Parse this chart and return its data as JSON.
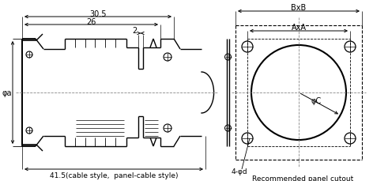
{
  "bg_color": "#ffffff",
  "line_color": "#000000",
  "figsize": [
    4.72,
    2.3
  ],
  "dpi": 100,
  "dim_30_5": "30.5",
  "dim_26": "26",
  "dim_2": "2",
  "dim_41_5": "41.5(cable style,  panel-cable style)",
  "dim_phiA": "φa",
  "dim_BxB": "BxB",
  "dim_AxA": "AxA",
  "dim_phiC": "φC",
  "dim_4phid": "4-φd",
  "label_panel": "Recommended panel cutout"
}
